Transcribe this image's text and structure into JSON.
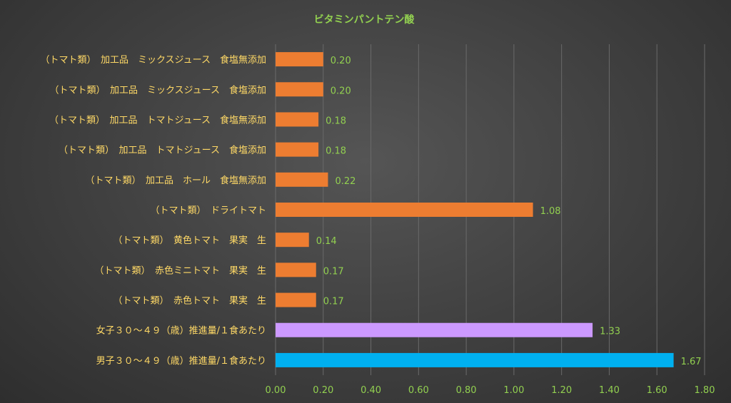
{
  "chart_data": {
    "type": "bar",
    "orientation": "horizontal",
    "title": "ビタミンパントテン酸",
    "categories": [
      "（トマト類）　加工品　ミックスジュース　食塩無添加",
      "（トマト類）　加工品　ミックスジュース　食塩添加",
      "（トマト類）　加工品　トマトジュース　食塩無添加",
      "（トマト類）　加工品　トマトジュース　食塩添加",
      "（トマト類）　加工品　ホール　食塩無添加",
      "（トマト類）　ドライトマト",
      "（トマト類）　黄色トマト　果実　生",
      "（トマト類）　赤色ミニトマト　果実　生",
      "（トマト類）　赤色トマト　果実　生",
      "女子３０～４９（歳）推進量/１食あたり",
      "男子３０～４９（歳）推進量/１食あたり"
    ],
    "values": [
      0.2,
      0.2,
      0.18,
      0.18,
      0.22,
      1.08,
      0.14,
      0.17,
      0.17,
      1.33,
      1.67
    ],
    "value_labels": [
      "0.20",
      "0.20",
      "0.18",
      "0.18",
      "0.22",
      "1.08",
      "0.14",
      "0.17",
      "0.17",
      "1.33",
      "1.67"
    ],
    "bar_colors": [
      "#ED7D31",
      "#ED7D31",
      "#ED7D31",
      "#ED7D31",
      "#ED7D31",
      "#ED7D31",
      "#ED7D31",
      "#ED7D31",
      "#ED7D31",
      "#CC99FF",
      "#00B0F0"
    ],
    "xlim": [
      0,
      1.8
    ],
    "x_ticks": [
      "0.00",
      "0.20",
      "0.40",
      "0.60",
      "0.80",
      "1.00",
      "1.20",
      "1.40",
      "1.60",
      "1.80"
    ],
    "grid": "vertical",
    "colors": {
      "category_label": "#FFD966",
      "value_label": "#92D050",
      "tick_label": "#92D050",
      "title": "#92D050",
      "grid": "#6a6a6a"
    }
  }
}
